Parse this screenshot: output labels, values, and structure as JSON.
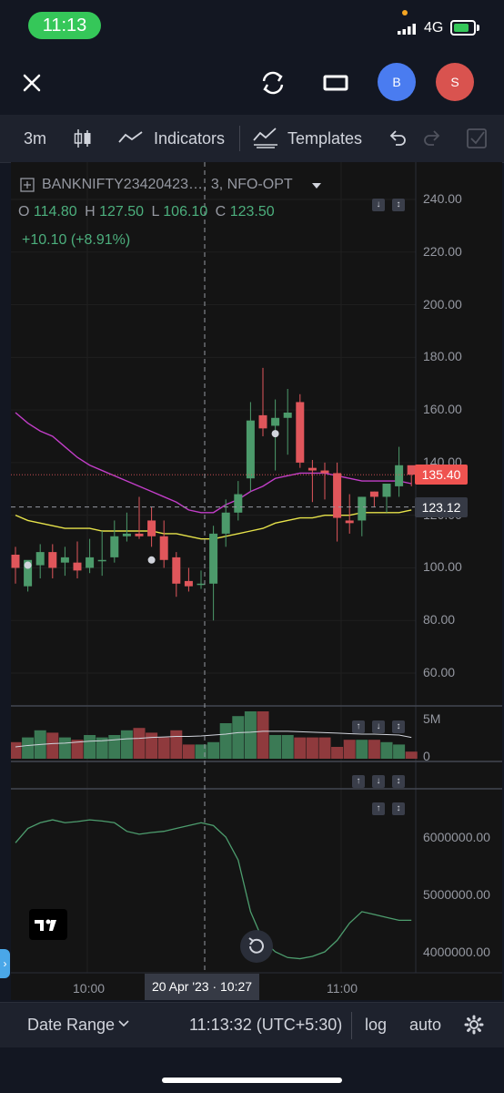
{
  "status_bar": {
    "time": "11:13",
    "network": "4G"
  },
  "header": {
    "close_icon": "close-icon",
    "refresh_icon": "refresh-icon",
    "layout_icon": "rectangle-icon",
    "avatar_b": "B",
    "avatar_s": "S",
    "avatar_b_color": "#4a7cf0",
    "avatar_s_color": "#d9534f"
  },
  "toolbar": {
    "interval": "3m",
    "indicators": "Indicators",
    "templates": "Templates"
  },
  "legend": {
    "symbol": "BANKNIFTY23420423…, 3, NFO-OPT",
    "o_label": "O",
    "o_value": "114.80",
    "h_label": "H",
    "h_value": "127.50",
    "l_label": "L",
    "l_value": "106.10",
    "c_label": "C",
    "c_value": "123.50",
    "change": "+10.10 (+8.91%)"
  },
  "price_axis": [
    "240.00",
    "220.00",
    "200.00",
    "180.00",
    "160.00",
    "140.00",
    "120.00",
    "100.00",
    "80.00",
    "60.00"
  ],
  "price_badges": {
    "last": "135.40",
    "crosshair": "123.12",
    "last_color": "#ef5350",
    "crosshair_color": "#363a45"
  },
  "volume_axis": [
    "5M",
    "0"
  ],
  "osc_axis": [
    "6000000.00",
    "5000000.00",
    "4000000.00"
  ],
  "time_axis": {
    "t1": "10:00",
    "t2": "11:00",
    "crosshair": "20 Apr '23 · 10:27"
  },
  "bottom_bar": {
    "date_range": "Date Range",
    "clock": "11:13:32 (UTC+5:30)",
    "log": "log",
    "auto": "auto"
  },
  "colors": {
    "up": "#4c9a6b",
    "down": "#e0565b",
    "ma1": "#c23ec8",
    "ma2": "#e6e24a",
    "osc": "#4d9d6e",
    "vol_ma": "#d1d4dc"
  },
  "chart_data": {
    "type": "candlestick",
    "candles": [
      {
        "o": 105,
        "h": 108,
        "l": 94,
        "c": 100
      },
      {
        "o": 93,
        "h": 102,
        "l": 91,
        "c": 103
      },
      {
        "o": 101,
        "h": 109,
        "l": 96,
        "c": 106
      },
      {
        "o": 106,
        "h": 109,
        "l": 96,
        "c": 100
      },
      {
        "o": 102,
        "h": 108,
        "l": 97,
        "c": 104
      },
      {
        "o": 102,
        "h": 110,
        "l": 96,
        "c": 99
      },
      {
        "o": 100,
        "h": 111,
        "l": 98,
        "c": 104
      },
      {
        "o": 103,
        "h": 114,
        "l": 97,
        "c": 103
      },
      {
        "o": 104,
        "h": 118,
        "l": 102,
        "c": 112
      },
      {
        "o": 112,
        "h": 121,
        "l": 110,
        "c": 113
      },
      {
        "o": 113,
        "h": 127,
        "l": 111,
        "c": 112
      },
      {
        "o": 118,
        "h": 123,
        "l": 108,
        "c": 112
      },
      {
        "o": 112,
        "h": 118,
        "l": 100,
        "c": 103
      },
      {
        "o": 104,
        "h": 106,
        "l": 89,
        "c": 94
      },
      {
        "o": 95,
        "h": 100,
        "l": 91,
        "c": 93
      },
      {
        "o": 94,
        "h": 99,
        "l": 92,
        "c": 94
      },
      {
        "o": 94,
        "h": 116,
        "l": 80,
        "c": 113
      },
      {
        "o": 113,
        "h": 126,
        "l": 108,
        "c": 121
      },
      {
        "o": 121,
        "h": 133,
        "l": 118,
        "c": 128
      },
      {
        "o": 134,
        "h": 163,
        "l": 129,
        "c": 156
      },
      {
        "o": 158,
        "h": 176,
        "l": 150,
        "c": 153
      },
      {
        "o": 154,
        "h": 164,
        "l": 137,
        "c": 157
      },
      {
        "o": 157,
        "h": 168,
        "l": 143,
        "c": 159
      },
      {
        "o": 163,
        "h": 166,
        "l": 138,
        "c": 140
      },
      {
        "o": 138,
        "h": 141,
        "l": 125,
        "c": 137
      },
      {
        "o": 137,
        "h": 140,
        "l": 126,
        "c": 136
      },
      {
        "o": 136,
        "h": 140,
        "l": 110,
        "c": 119
      },
      {
        "o": 118,
        "h": 128,
        "l": 113,
        "c": 117
      },
      {
        "o": 118,
        "h": 127,
        "l": 112,
        "c": 127
      },
      {
        "o": 129,
        "h": 129,
        "l": 123,
        "c": 127
      },
      {
        "o": 127,
        "h": 132,
        "l": 121,
        "c": 132
      },
      {
        "o": 131,
        "h": 146,
        "l": 127,
        "c": 139
      },
      {
        "o": 139,
        "h": 138,
        "l": 131,
        "c": 135.4
      }
    ],
    "ma_fast": [
      159,
      155,
      152,
      150,
      146,
      142,
      139,
      137,
      135,
      133,
      131,
      129,
      127,
      125,
      122,
      121,
      121,
      124,
      126,
      129,
      131,
      134,
      135,
      136,
      136,
      136,
      135,
      134,
      133,
      133,
      133,
      133,
      132
    ],
    "ma_slow": [
      120,
      118,
      117,
      116,
      115,
      115,
      115,
      114,
      114,
      114,
      114,
      114,
      113,
      113,
      112,
      111,
      111,
      112,
      113,
      114,
      115,
      117,
      118,
      119,
      119,
      120,
      120,
      120,
      121,
      121,
      121,
      121,
      122
    ],
    "volume": [
      0.35,
      0.45,
      0.6,
      0.55,
      0.45,
      0.4,
      0.5,
      0.45,
      0.5,
      0.6,
      0.65,
      0.55,
      0.45,
      0.6,
      0.3,
      0.3,
      0.35,
      0.75,
      0.9,
      1,
      1,
      0.5,
      0.5,
      0.45,
      0.45,
      0.45,
      0.25,
      0.4,
      0.4,
      0.4,
      0.35,
      0.3,
      0.15
    ],
    "volume_ma": [
      0.25,
      0.28,
      0.3,
      0.32,
      0.33,
      0.35,
      0.37,
      0.38,
      0.4,
      0.42,
      0.43,
      0.45,
      0.46,
      0.47,
      0.47,
      0.48,
      0.5,
      0.52,
      0.55,
      0.56,
      0.58,
      0.58,
      0.58,
      0.57,
      0.56,
      0.55,
      0.54,
      0.53,
      0.52,
      0.52,
      0.51,
      0.5,
      0.45
    ],
    "osc": [
      5900000,
      6150000,
      6250000,
      6300000,
      6250000,
      6270000,
      6300000,
      6280000,
      6250000,
      6100000,
      6050000,
      6080000,
      6100000,
      6150000,
      6200000,
      6250000,
      6200000,
      6000000,
      5600000,
      4700000,
      4200000,
      4000000,
      3900000,
      3880000,
      3920000,
      4000000,
      4200000,
      4500000,
      4700000,
      4650000,
      4600000,
      4550000,
      4550000
    ],
    "ylim": [
      50,
      250
    ],
    "osc_ylim": [
      3800000,
      6600000
    ]
  }
}
